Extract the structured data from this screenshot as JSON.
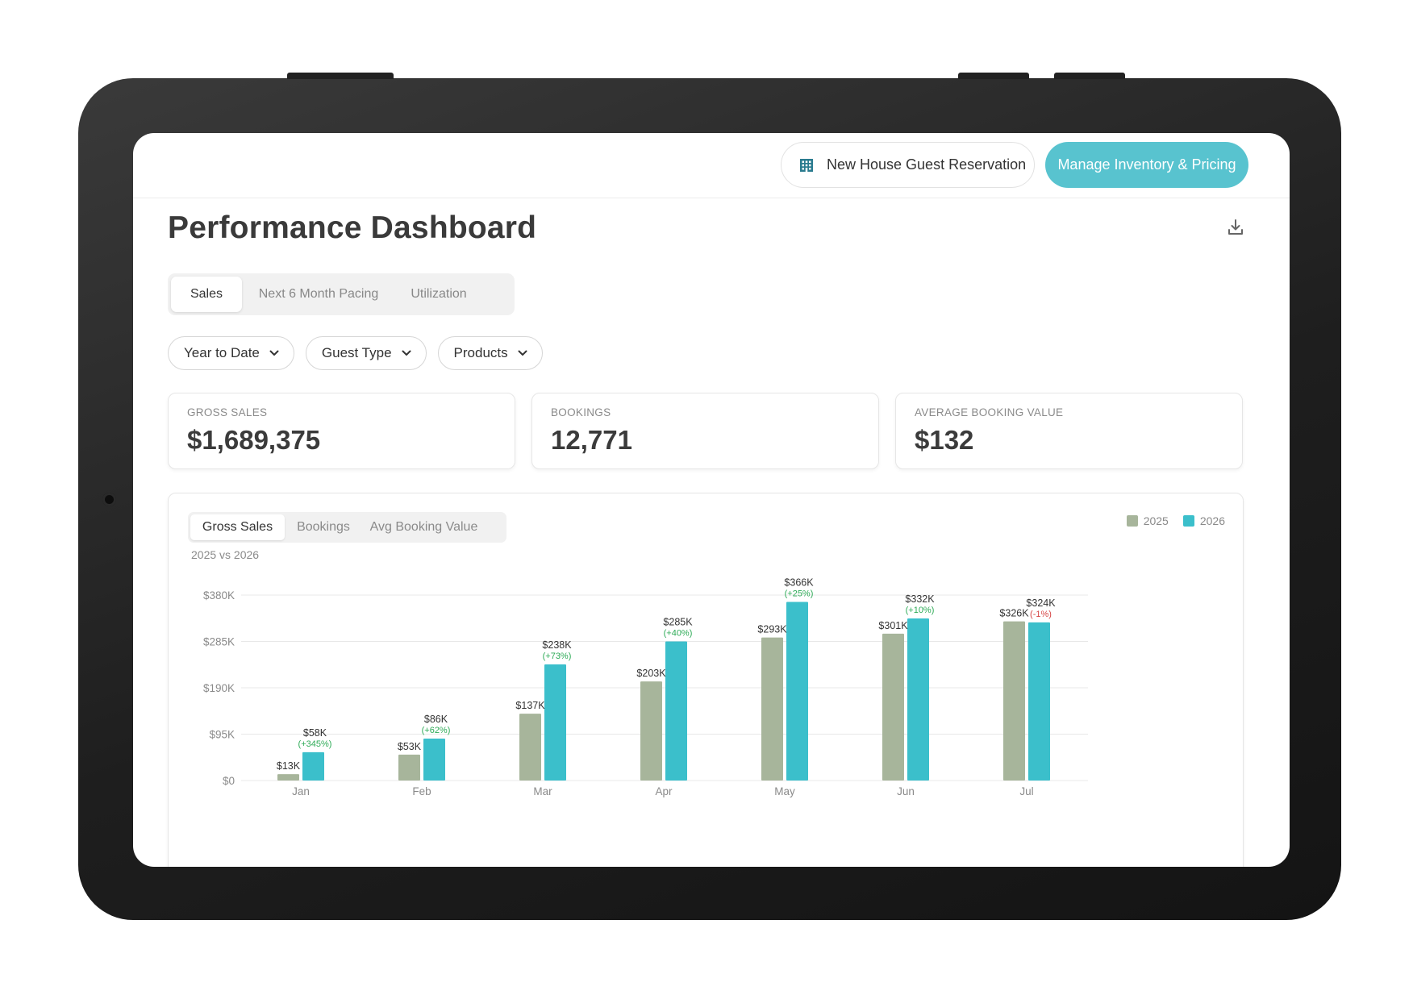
{
  "header": {
    "reservation_button": "New House Guest Reservation",
    "manage_button": "Manage Inventory & Pricing"
  },
  "page": {
    "title": "Performance Dashboard",
    "tabs": [
      {
        "label": "Sales",
        "active": true
      },
      {
        "label": "Next 6 Month Pacing",
        "active": false
      },
      {
        "label": "Utilization",
        "active": false
      }
    ],
    "filters": [
      {
        "label": "Year to Date"
      },
      {
        "label": "Guest Type"
      },
      {
        "label": "Products"
      }
    ]
  },
  "kpis": [
    {
      "label": "GROSS SALES",
      "value": "$1,689,375"
    },
    {
      "label": "BOOKINGS",
      "value": "12,771"
    },
    {
      "label": "AVERAGE BOOKING VALUE",
      "value": "$132"
    }
  ],
  "chart": {
    "tabs": [
      {
        "label": "Gross Sales",
        "active": true
      },
      {
        "label": "Bookings",
        "active": false
      },
      {
        "label": "Avg Booking Value",
        "active": false
      }
    ],
    "subtitle": "2025 vs 2026",
    "colors": {
      "s2025": "#a7b59b",
      "s2026": "#3bbfcb",
      "grid": "#e8e8e8",
      "axis_text": "#8a8a8a",
      "label_text": "#333333",
      "positive": "#2eab57",
      "negative": "#d64545"
    }
  },
  "chart_data": {
    "type": "bar",
    "categories": [
      "Jan",
      "Feb",
      "Mar",
      "Apr",
      "May",
      "Jun",
      "Jul"
    ],
    "series": [
      {
        "name": "2025",
        "values": [
          13,
          53,
          137,
          203,
          293,
          301,
          326
        ],
        "labels": [
          "$13K",
          "$53K",
          "$137K",
          "$203K",
          "$293K",
          "$301K",
          "$326K"
        ]
      },
      {
        "name": "2026",
        "values": [
          58,
          86,
          238,
          285,
          366,
          332,
          324
        ],
        "labels": [
          "$58K",
          "$86K",
          "$238K",
          "$285K",
          "$366K",
          "$332K",
          "$324K"
        ]
      }
    ],
    "change_labels": [
      "(+345%)",
      "(+62%)",
      "(+73%)",
      "(+40%)",
      "(+25%)",
      "(+10%)",
      "(-1%)"
    ],
    "change_positive": [
      true,
      true,
      true,
      true,
      true,
      true,
      false
    ],
    "yticks": [
      0,
      95,
      190,
      285,
      380
    ],
    "ytick_labels": [
      "$0",
      "$95K",
      "$190K",
      "$285K",
      "$380K"
    ],
    "ylim": [
      0,
      380
    ],
    "legend": "top-right",
    "grid": true
  }
}
